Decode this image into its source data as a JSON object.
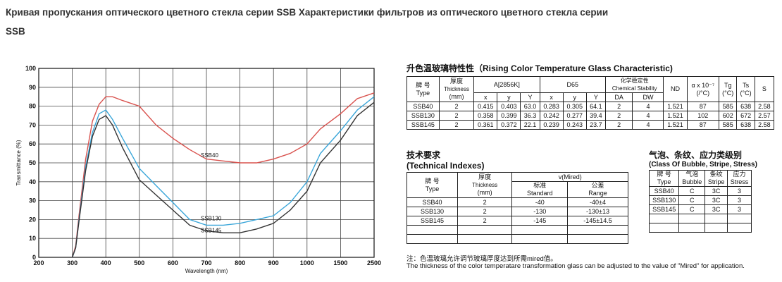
{
  "header": {
    "line1": "Кривая пропускания оптического цветного стекла серии SSB   Характеристики фильтров из оптического цветного стекла серии",
    "line2": "SSB"
  },
  "chart_data": {
    "type": "line",
    "xlabel": "Wavelength (nm)",
    "ylabel": "Transmittance (%)",
    "x_ticks": [
      "200",
      "300",
      "400",
      "500",
      "600",
      "700",
      "800",
      "900",
      "1000",
      "1500",
      "2500"
    ],
    "y_ticks": [
      "0",
      "10",
      "20",
      "30",
      "40",
      "50",
      "60",
      "70",
      "80",
      "90",
      "100"
    ],
    "ylim": [
      0,
      100
    ],
    "grid": true,
    "series": [
      {
        "name": "SSB40",
        "color": "#d9534f",
        "points": [
          [
            300,
            0
          ],
          [
            310,
            6
          ],
          [
            320,
            22
          ],
          [
            340,
            52
          ],
          [
            360,
            72
          ],
          [
            380,
            81
          ],
          [
            400,
            85
          ],
          [
            420,
            85
          ],
          [
            450,
            83
          ],
          [
            500,
            80
          ],
          [
            550,
            70
          ],
          [
            600,
            63
          ],
          [
            650,
            57
          ],
          [
            700,
            52
          ],
          [
            750,
            51
          ],
          [
            800,
            50
          ],
          [
            850,
            50
          ],
          [
            900,
            52
          ],
          [
            950,
            55
          ],
          [
            1000,
            60
          ],
          [
            1200,
            68
          ],
          [
            1500,
            76
          ],
          [
            2000,
            84
          ],
          [
            2500,
            87
          ]
        ]
      },
      {
        "name": "SSB130",
        "color": "#3aa6d9",
        "points": [
          [
            300,
            0
          ],
          [
            310,
            5
          ],
          [
            320,
            20
          ],
          [
            340,
            48
          ],
          [
            360,
            66
          ],
          [
            380,
            76
          ],
          [
            400,
            78
          ],
          [
            420,
            73
          ],
          [
            450,
            63
          ],
          [
            500,
            47
          ],
          [
            550,
            38
          ],
          [
            600,
            29
          ],
          [
            650,
            20
          ],
          [
            700,
            17
          ],
          [
            750,
            17
          ],
          [
            800,
            18
          ],
          [
            850,
            20
          ],
          [
            900,
            22
          ],
          [
            950,
            29
          ],
          [
            1000,
            40
          ],
          [
            1200,
            55
          ],
          [
            1500,
            67
          ],
          [
            2000,
            78
          ],
          [
            2500,
            85
          ]
        ]
      },
      {
        "name": "SSB145",
        "color": "#333333",
        "points": [
          [
            300,
            0
          ],
          [
            310,
            5
          ],
          [
            320,
            19
          ],
          [
            340,
            46
          ],
          [
            360,
            64
          ],
          [
            380,
            73
          ],
          [
            400,
            75
          ],
          [
            420,
            70
          ],
          [
            450,
            58
          ],
          [
            500,
            41
          ],
          [
            550,
            33
          ],
          [
            600,
            25
          ],
          [
            650,
            17
          ],
          [
            700,
            14
          ],
          [
            750,
            13
          ],
          [
            800,
            13
          ],
          [
            850,
            15
          ],
          [
            900,
            18
          ],
          [
            950,
            25
          ],
          [
            1000,
            35
          ],
          [
            1200,
            50
          ],
          [
            1500,
            62
          ],
          [
            2000,
            75
          ],
          [
            2500,
            82
          ]
        ]
      }
    ]
  },
  "rising": {
    "title": "升色温玻璃特性性（Rising Color Temperature Glass Characteristic)",
    "h_brand_cn": "牌 号",
    "h_brand_en": "Type",
    "h_thick_cn": "厚度",
    "h_thick_en": "Thickness",
    "h_thick_unit": "(mm)",
    "h_a": "A[2856K]",
    "h_d65": "D65",
    "h_chem_cn": "化学稳定性",
    "h_chem_en": "Chemical Stability",
    "h_nd": "ND",
    "h_alpha": "α x 10⁻⁷",
    "h_alpha_u": "(/°C)",
    "h_tg": "Tg",
    "h_tg_u": "(°C)",
    "h_ts": "Ts",
    "h_ts_u": "(°C)",
    "h_s": "S",
    "h_x": "x",
    "h_y": "y",
    "h_Y": "Y",
    "h_da": "DA",
    "h_dw": "DW",
    "rows": [
      [
        "SSB40",
        "2",
        "0.415",
        "0.403",
        "63.0",
        "0.283",
        "0.305",
        "64.1",
        "2",
        "4",
        "1.521",
        "87",
        "585",
        "638",
        "2.58"
      ],
      [
        "SSB130",
        "2",
        "0.358",
        "0.399",
        "36.3",
        "0.242",
        "0.277",
        "39.4",
        "2",
        "4",
        "1.521",
        "102",
        "602",
        "672",
        "2.57"
      ],
      [
        "SSB145",
        "2",
        "0.361",
        "0.372",
        "22.1",
        "0.239",
        "0.243",
        "23.7",
        "2",
        "4",
        "1.521",
        "87",
        "585",
        "638",
        "2.58"
      ]
    ]
  },
  "tech": {
    "title_cn": "技术要求",
    "title_en": "(Technical Indexes)",
    "h_brand_cn": "牌 号",
    "h_brand_en": "Type",
    "h_thick_cn": "厚度",
    "h_thick_en": "Thickness",
    "h_thick_unit": "(mm)",
    "h_mired": "v(Mired)",
    "h_std_cn": "标准",
    "h_std_en": "Standard",
    "h_rng_cn": "公差",
    "h_rng_en": "Range",
    "rows": [
      [
        "SSB40",
        "2",
        "-40",
        "-40±4"
      ],
      [
        "SSB130",
        "2",
        "-130",
        "-130±13"
      ],
      [
        "SSB145",
        "2",
        "-145",
        "-145±14.5"
      ]
    ]
  },
  "stress": {
    "title_cn": "气泡、条纹、应力类级别",
    "title_en": "(Class Of Bubble, Stripe, Stress)",
    "h_brand_cn": "牌 号",
    "h_brand_en": "Type",
    "h_bub_cn": "气泡",
    "h_bub_en": "Bubble",
    "h_str_cn": "条纹",
    "h_str_en": "Stripe",
    "h_sts_cn": "应力",
    "h_sts_en": "Stress",
    "rows": [
      [
        "SSB40",
        "C",
        "3C",
        "3"
      ],
      [
        "SSB130",
        "C",
        "3C",
        "3"
      ],
      [
        "SSB145",
        "C",
        "3C",
        "3"
      ]
    ]
  },
  "note": {
    "cn": "注：色温玻璃允许调节玻璃厚度达到所需mired值。",
    "en": "The thickness of the color temperatare transformation glass can be adjusted to the value of  \"Mired\" for application."
  }
}
